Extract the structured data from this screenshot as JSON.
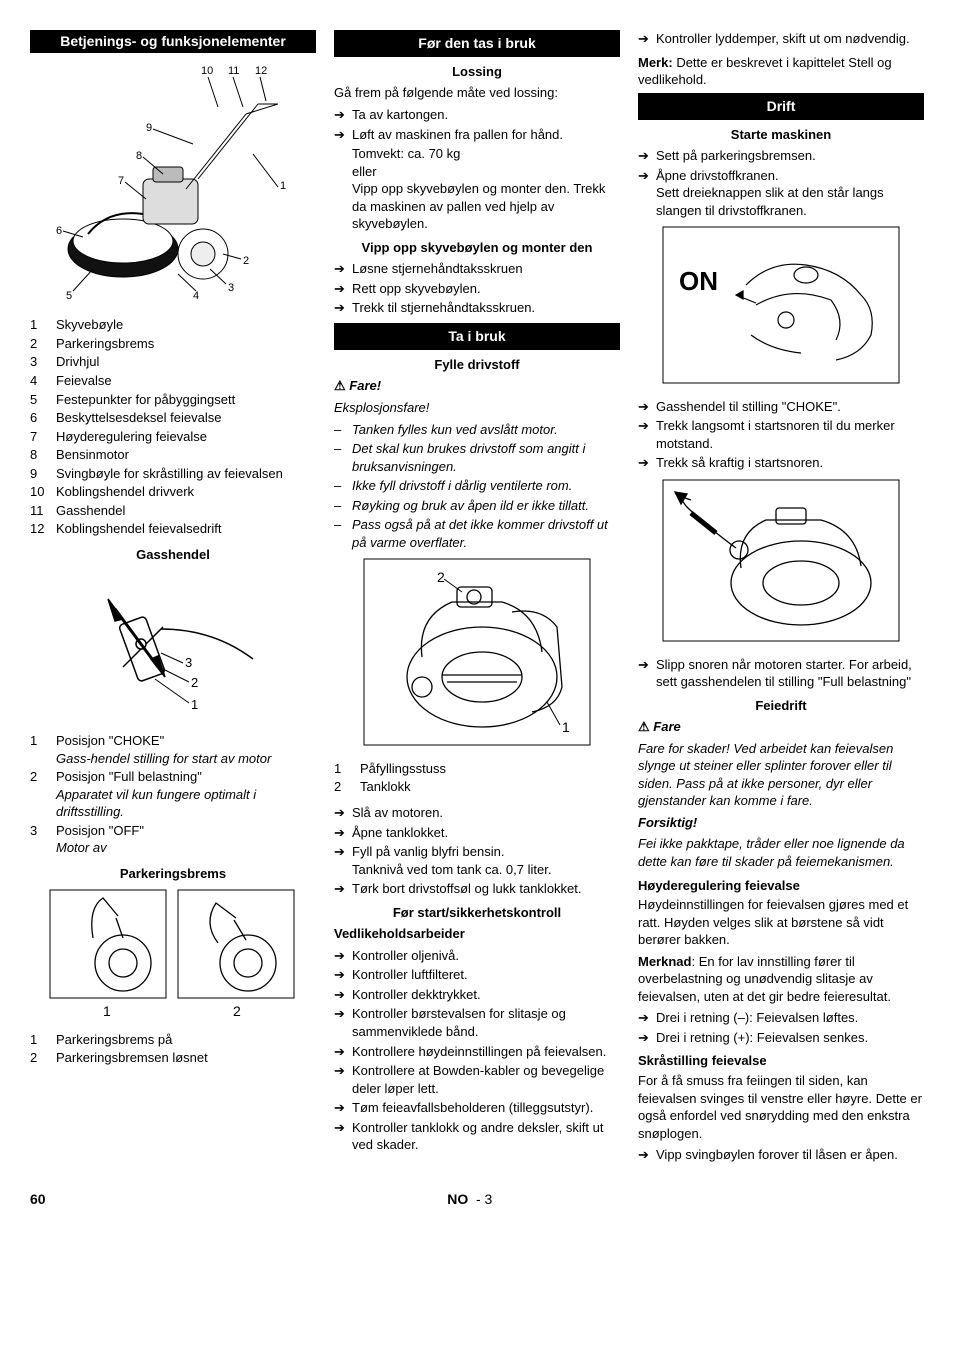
{
  "col1": {
    "h1": "Betjenings- og funksjonelementer",
    "parts": [
      {
        "n": "1",
        "t": "Skyvebøyle"
      },
      {
        "n": "2",
        "t": "Parkeringsbrems"
      },
      {
        "n": "3",
        "t": "Drivhjul"
      },
      {
        "n": "4",
        "t": "Feievalse"
      },
      {
        "n": "5",
        "t": "Festepunkter for påbyggingsett"
      },
      {
        "n": "6",
        "t": "Beskyttelsesdeksel feievalse"
      },
      {
        "n": "7",
        "t": "Høyderegulering feievalse"
      },
      {
        "n": "8",
        "t": "Bensinmotor"
      },
      {
        "n": "9",
        "t": "Svingbøyle for skråstilling av feievalsen"
      },
      {
        "n": "10",
        "t": "Koblingshendel drivverk"
      },
      {
        "n": "11",
        "t": "Gasshendel"
      },
      {
        "n": "12",
        "t": "Koblingshendel feievalsedrift"
      }
    ],
    "gass_h": "Gasshendel",
    "gass_items": [
      {
        "n": "1",
        "t": "Posisjon \"CHOKE\"",
        "d": "Gass-hendel stilling for start av motor"
      },
      {
        "n": "2",
        "t": "Posisjon \"Full belastning\"",
        "d": "Apparatet vil kun fungere optimalt i driftsstilling."
      },
      {
        "n": "3",
        "t": "Posisjon \"OFF\"",
        "d": "Motor av"
      }
    ],
    "park_h": "Parkeringsbrems",
    "park_items": [
      {
        "n": "1",
        "t": "Parkeringsbrems på"
      },
      {
        "n": "2",
        "t": "Parkeringsbremsen løsnet"
      }
    ]
  },
  "col2": {
    "h1": "Før den tas i bruk",
    "lossing_h": "Lossing",
    "lossing_intro": "Gå frem på følgende måte ved lossing:",
    "lossing_list": [
      "Ta av kartongen.",
      "Løft av maskinen fra pallen for hånd."
    ],
    "lossing_note1": "Tomvekt: ca. 70 kg",
    "lossing_note2": "eller",
    "lossing_note3": "Vipp opp skyvebøylen og monter den. Trekk da maskinen av pallen ved hjelp av skyvebøylen.",
    "vipp_h": "Vipp opp skyvebøylen og monter den",
    "vipp_list": [
      "Løsne stjernehåndtaksskruen",
      "Rett opp skyvebøylen.",
      "Trekk til stjernehåndtaksskruen."
    ],
    "h2": "Ta i bruk",
    "fylle_h": "Fylle drivstoff",
    "fare": "Fare!",
    "eksp": "Eksplosjonsfare!",
    "dash": [
      "Tanken fylles kun ved avslått motor.",
      "Det skal kun brukes drivstoff som angitt i bruksanvisningen.",
      "Ikke fyll drivstoff i dårlig ventilerte rom.",
      "Røyking og bruk av åpen ild er ikke tillatt.",
      "Pass også på at det ikke kommer drivstoff ut på varme overflater."
    ],
    "fig_items": [
      {
        "n": "1",
        "t": "Påfyllingsstuss"
      },
      {
        "n": "2",
        "t": "Tanklokk"
      }
    ],
    "steps": [
      "Slå av motoren.",
      "Åpne tanklokket.",
      "Fyll på vanlig blyfri bensin."
    ],
    "tank_note": "Tanknivå ved tom tank ca. 0,7 liter.",
    "step_last": "Tørk bort drivstoffsøl og lukk tanklokket.",
    "sikker_h": "Før start/sikkerhetskontroll",
    "vedl": "Vedlikeholdsarbeider",
    "vedl_list": [
      "Kontroller oljenivå.",
      "Kontroller luftfilteret.",
      "Kontroller dekktrykket.",
      "Kontroller børstevalsen for slitasje og sammenviklede bånd.",
      "Kontrollere høydeinnstillingen på feievalsen.",
      "Kontrollere at Bowden-kabler og bevegelige deler løper lett.",
      "Tøm feieavfallsbeholderen (tilleggsutstyr).",
      "Kontroller tanklokk og andre deksler, skift ut ved skader."
    ]
  },
  "col3": {
    "top_list": [
      "Kontroller lyddemper, skift ut om nødvendig."
    ],
    "merk_label": "Merk:",
    "merk": "Dette er beskrevet i kapittelet Stell og vedlikehold.",
    "h1": "Drift",
    "starte_h": "Starte maskinen",
    "starte_list1": [
      "Sett på parkeringsbremsen.",
      "Åpne drivstoffkranen."
    ],
    "starte_note": "Sett dreieknappen slik at den står langs slangen til drivstoffkranen.",
    "starte_list2": [
      "Gasshendel til stilling \"CHOKE\".",
      "Trekk langsomt i startsnoren til du merker motstand.",
      "Trekk så kraftig i startsnoren."
    ],
    "starte_list3": [
      "Slipp snoren når motoren starter. For arbeid, sett gasshendelen til stilling \"Full belastning\""
    ],
    "feie_h": "Feiedrift",
    "fare": "Fare",
    "fare_text": "Fare for skader! Ved arbeidet kan feievalsen slynge ut steiner eller splinter forover eller til siden. Pass på at ikke personer, dyr eller gjenstander kan komme i fare.",
    "fors": "Forsiktig!",
    "fors_text": "Fei ikke pakktape, tråder eller noe lignende da dette kan føre til skader på feiemekanismen.",
    "hoy_h": "Høyderegulering feievalse",
    "hoy_p1": "Høydeinnstillingen for feievalsen gjøres med et ratt. Høyden velges slik at børstene så vidt berører bakken.",
    "merknad_label": "Merknad",
    "hoy_p2": ": En for lav innstilling fører til overbelastning og unødvendig slitasje av feievalsen, uten at det gir bedre feieresultat.",
    "hoy_list": [
      "Drei i retning (–): Feievalsen løftes.",
      "Drei i retning (+): Feievalsen senkes."
    ],
    "skra_h": "Skråstilling feievalse",
    "skra_p": "For å få smuss fra feiingen til siden, kan feievalsen svinges til venstre eller høyre. Dette er også enfordel ved snørydding med den enkstra snøplogen.",
    "skra_list": [
      "Vipp svingbøylen forover til låsen er åpen."
    ]
  },
  "footer": {
    "page": "60",
    "lang": "NO",
    "sub": "- 3"
  }
}
